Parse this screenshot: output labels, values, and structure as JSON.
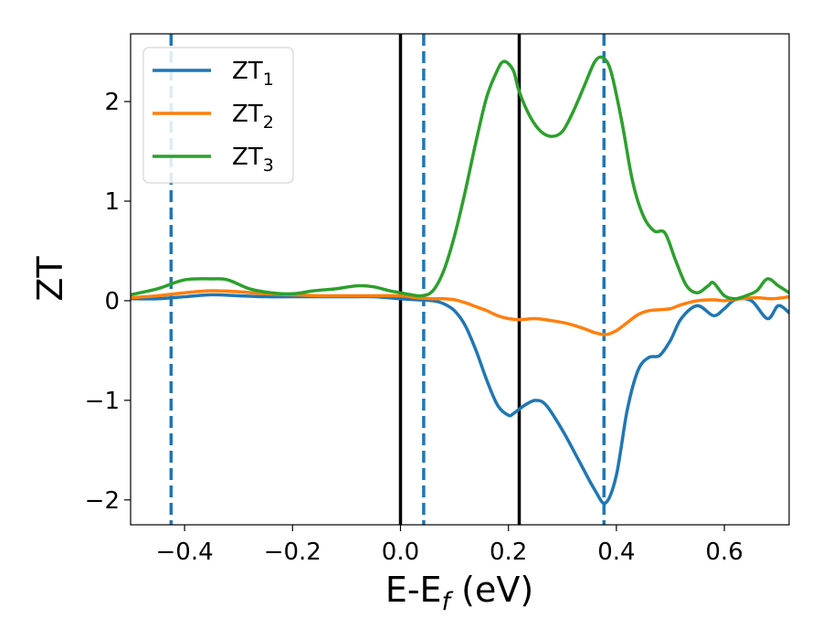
{
  "chart_data": {
    "type": "line",
    "xlabel": {
      "main": "E-E",
      "sub": "f",
      "unit": " (eV)"
    },
    "ylabel": "ZT",
    "xlim": [
      -0.5,
      0.72
    ],
    "ylim": [
      -2.25,
      2.68
    ],
    "x_ticks": [
      -0.4,
      -0.2,
      0.0,
      0.2,
      0.4,
      0.6
    ],
    "x_tick_labels": [
      "−0.4",
      "−0.2",
      "0.0",
      "0.2",
      "0.4",
      "0.6"
    ],
    "y_ticks": [
      -2,
      -1,
      0,
      1,
      2
    ],
    "y_tick_labels": [
      "−2",
      "−1",
      "0",
      "1",
      "2"
    ],
    "grid": false,
    "legend_position": "upper-left",
    "series": [
      {
        "name": "ZT",
        "sub": "1",
        "color": "#1f77b4",
        "x": [
          -0.5,
          -0.45,
          -0.4,
          -0.35,
          -0.3,
          -0.25,
          -0.2,
          -0.15,
          -0.1,
          -0.05,
          0.0,
          0.03,
          0.06,
          0.08,
          0.1,
          0.12,
          0.14,
          0.16,
          0.18,
          0.2,
          0.21,
          0.23,
          0.25,
          0.27,
          0.3,
          0.33,
          0.36,
          0.38,
          0.4,
          0.42,
          0.44,
          0.46,
          0.48,
          0.5,
          0.52,
          0.55,
          0.58,
          0.6,
          0.62,
          0.65,
          0.68,
          0.7,
          0.72
        ],
        "y": [
          0.02,
          0.02,
          0.04,
          0.06,
          0.05,
          0.04,
          0.04,
          0.04,
          0.04,
          0.04,
          0.02,
          0.01,
          0.0,
          -0.03,
          -0.1,
          -0.25,
          -0.5,
          -0.8,
          -1.05,
          -1.15,
          -1.13,
          -1.05,
          -1.0,
          -1.05,
          -1.3,
          -1.6,
          -1.9,
          -2.03,
          -1.75,
          -1.1,
          -0.7,
          -0.57,
          -0.55,
          -0.4,
          -0.18,
          -0.05,
          -0.15,
          -0.08,
          0.01,
          0.0,
          -0.18,
          -0.05,
          -0.12
        ]
      },
      {
        "name": "ZT",
        "sub": "2",
        "color": "#ff7f0e",
        "x": [
          -0.5,
          -0.45,
          -0.4,
          -0.35,
          -0.3,
          -0.25,
          -0.2,
          -0.15,
          -0.1,
          -0.05,
          0.0,
          0.03,
          0.06,
          0.08,
          0.1,
          0.12,
          0.14,
          0.16,
          0.18,
          0.2,
          0.22,
          0.25,
          0.28,
          0.31,
          0.34,
          0.36,
          0.38,
          0.4,
          0.42,
          0.44,
          0.46,
          0.48,
          0.5,
          0.52,
          0.55,
          0.58,
          0.6,
          0.63,
          0.66,
          0.69,
          0.72
        ],
        "y": [
          0.03,
          0.05,
          0.08,
          0.1,
          0.09,
          0.07,
          0.06,
          0.05,
          0.05,
          0.05,
          0.05,
          0.03,
          0.02,
          0.02,
          0.01,
          -0.02,
          -0.06,
          -0.1,
          -0.15,
          -0.18,
          -0.19,
          -0.18,
          -0.2,
          -0.23,
          -0.28,
          -0.32,
          -0.34,
          -0.3,
          -0.22,
          -0.14,
          -0.1,
          -0.09,
          -0.08,
          -0.04,
          0.0,
          0.01,
          0.0,
          0.02,
          0.03,
          0.02,
          0.04
        ]
      },
      {
        "name": "ZT",
        "sub": "3",
        "color": "#2ca02c",
        "x": [
          -0.5,
          -0.45,
          -0.4,
          -0.35,
          -0.32,
          -0.28,
          -0.24,
          -0.2,
          -0.16,
          -0.12,
          -0.08,
          -0.05,
          -0.02,
          0.0,
          0.02,
          0.04,
          0.06,
          0.08,
          0.1,
          0.12,
          0.14,
          0.16,
          0.18,
          0.19,
          0.2,
          0.21,
          0.22,
          0.24,
          0.26,
          0.28,
          0.3,
          0.32,
          0.34,
          0.36,
          0.375,
          0.39,
          0.41,
          0.43,
          0.45,
          0.47,
          0.49,
          0.51,
          0.53,
          0.55,
          0.57,
          0.58,
          0.6,
          0.62,
          0.64,
          0.66,
          0.68,
          0.7,
          0.72
        ],
        "y": [
          0.06,
          0.12,
          0.21,
          0.22,
          0.21,
          0.12,
          0.08,
          0.07,
          0.1,
          0.12,
          0.15,
          0.14,
          0.1,
          0.08,
          0.06,
          0.05,
          0.1,
          0.3,
          0.65,
          1.1,
          1.6,
          2.05,
          2.32,
          2.4,
          2.38,
          2.3,
          2.1,
          1.85,
          1.7,
          1.65,
          1.7,
          1.9,
          2.15,
          2.4,
          2.44,
          2.3,
          1.8,
          1.2,
          0.85,
          0.7,
          0.68,
          0.4,
          0.15,
          0.08,
          0.15,
          0.18,
          0.05,
          0.02,
          0.05,
          0.1,
          0.22,
          0.15,
          0.08
        ]
      }
    ],
    "vlines": [
      {
        "x": -0.425,
        "color": "#1f77b4",
        "style": "dashed"
      },
      {
        "x": 0.0,
        "color": "#000000",
        "style": "solid"
      },
      {
        "x": 0.043,
        "color": "#1f77b4",
        "style": "dashed"
      },
      {
        "x": 0.22,
        "color": "#000000",
        "style": "solid"
      },
      {
        "x": 0.377,
        "color": "#1f77b4",
        "style": "dashed"
      }
    ]
  }
}
